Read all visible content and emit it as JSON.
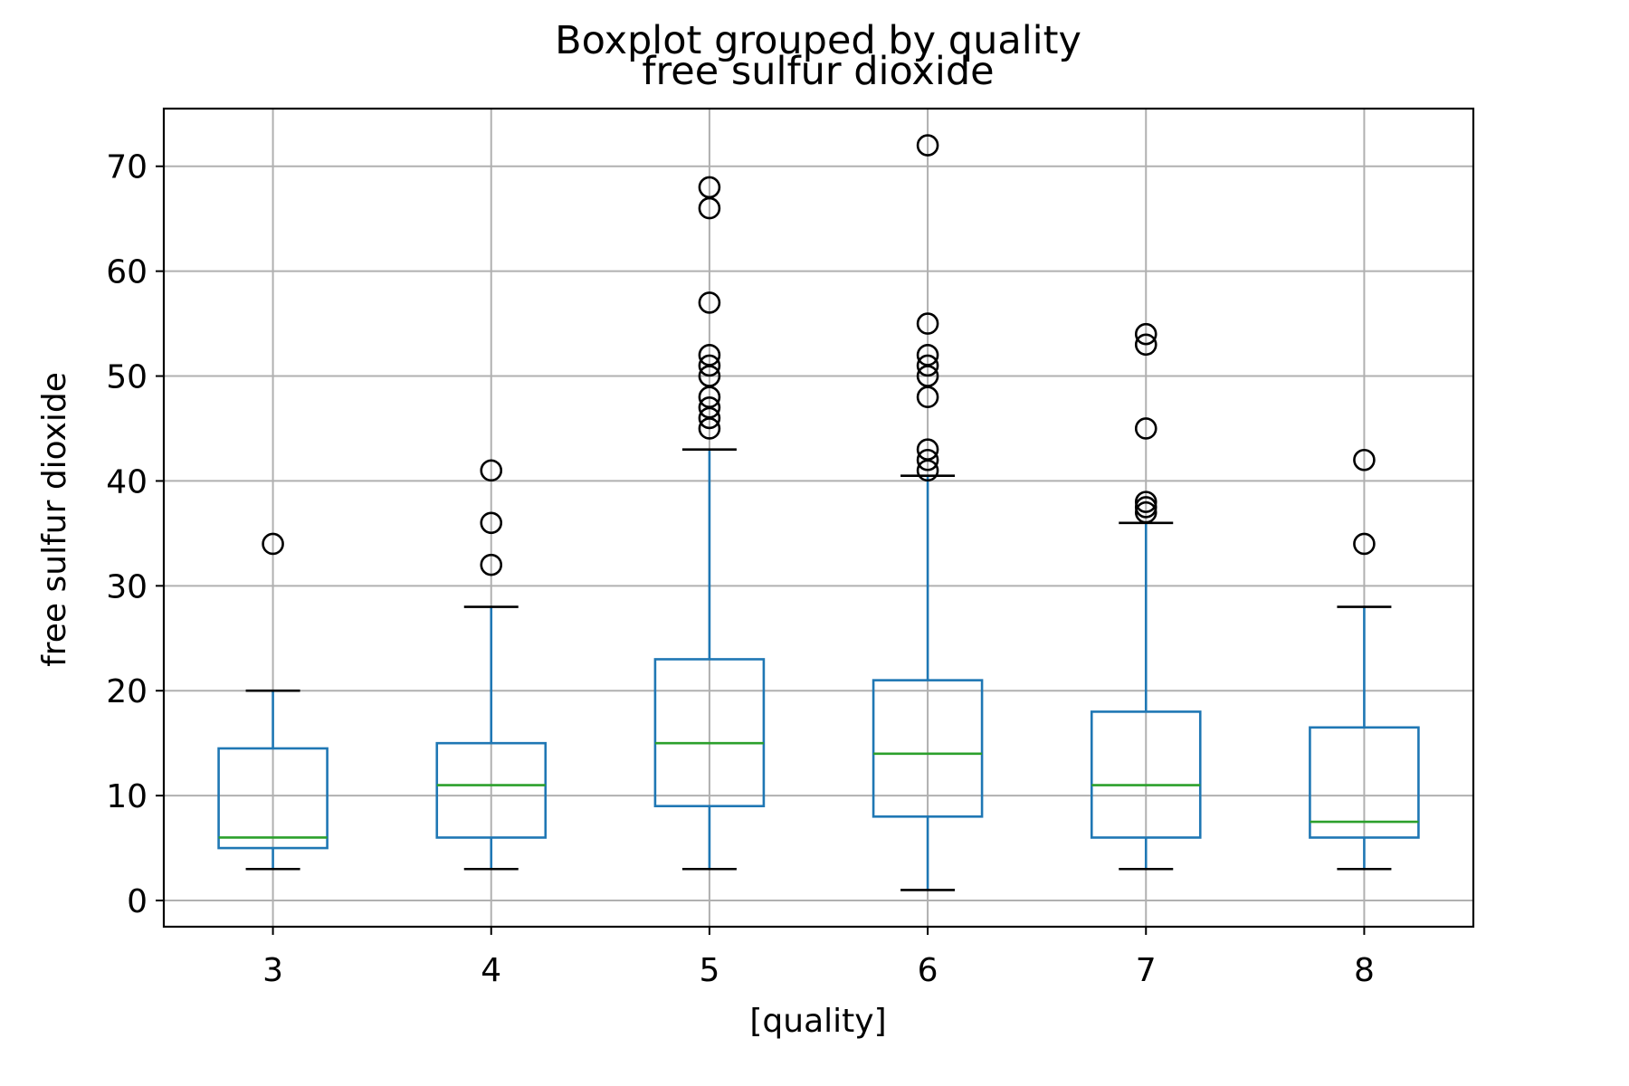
{
  "chart_data": {
    "type": "boxplot",
    "suptitle": "Boxplot grouped by quality",
    "title": "free sulfur dioxide",
    "xlabel": "[quality]",
    "ylabel": "free sulfur dioxide",
    "categories": [
      "3",
      "4",
      "5",
      "6",
      "7",
      "8"
    ],
    "ylim": [
      -2.5,
      75.5
    ],
    "yticks": [
      0,
      10,
      20,
      30,
      40,
      50,
      60,
      70
    ],
    "ytick_labels": [
      "0",
      "10",
      "20",
      "30",
      "40",
      "50",
      "60",
      "70"
    ],
    "grid": true,
    "colors": {
      "box": "#1f77b4",
      "median": "#2ca02c",
      "cap": "#000000",
      "flier": "#000000",
      "grid": "#b0b0b0",
      "frame": "#000000"
    },
    "boxes": [
      {
        "category": "3",
        "whisker_low": 3,
        "q1": 5,
        "median": 6,
        "q3": 14.5,
        "whisker_high": 20,
        "fliers": [
          34
        ]
      },
      {
        "category": "4",
        "whisker_low": 3,
        "q1": 6,
        "median": 11,
        "q3": 15,
        "whisker_high": 28,
        "fliers": [
          32,
          36,
          41
        ]
      },
      {
        "category": "5",
        "whisker_low": 3,
        "q1": 9,
        "median": 15,
        "q3": 23,
        "whisker_high": 43,
        "fliers": [
          45,
          46,
          47,
          48,
          50,
          51,
          52,
          57,
          66,
          68
        ]
      },
      {
        "category": "6",
        "whisker_low": 1,
        "q1": 8,
        "median": 14,
        "q3": 21,
        "whisker_high": 40.5,
        "fliers": [
          41,
          42,
          43,
          48,
          50,
          51,
          52,
          55,
          72
        ]
      },
      {
        "category": "7",
        "whisker_low": 3,
        "q1": 6,
        "median": 11,
        "q3": 18,
        "whisker_high": 36,
        "fliers": [
          37,
          37.5,
          38,
          45,
          53,
          54
        ]
      },
      {
        "category": "8",
        "whisker_low": 3,
        "q1": 6,
        "median": 7.5,
        "q3": 16.5,
        "whisker_high": 28,
        "fliers": [
          34,
          42
        ]
      }
    ]
  }
}
